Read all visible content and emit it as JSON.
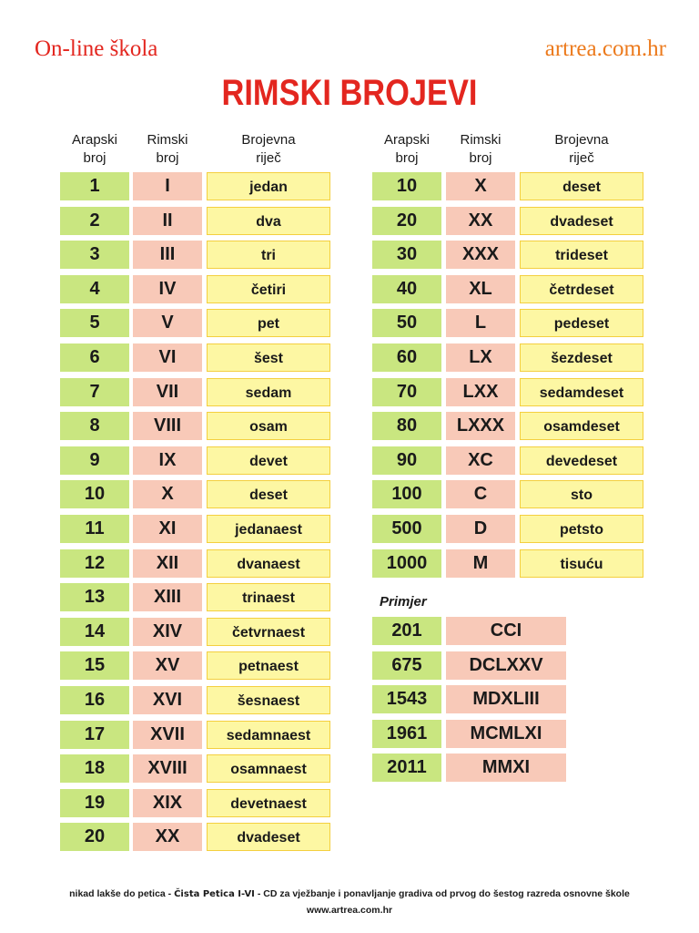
{
  "header": {
    "brand_left": "On-line škola",
    "brand_right": "artrea.com.hr",
    "title": "RIMSKI BROJEVI"
  },
  "columns": {
    "arabic": "Arapski broj",
    "roman": "Rimski broj",
    "word": "Brojevna riječ"
  },
  "left_table": [
    {
      "arabic": "1",
      "roman": "I",
      "word": "jedan"
    },
    {
      "arabic": "2",
      "roman": "II",
      "word": "dva"
    },
    {
      "arabic": "3",
      "roman": "III",
      "word": "tri"
    },
    {
      "arabic": "4",
      "roman": "IV",
      "word": "četiri"
    },
    {
      "arabic": "5",
      "roman": "V",
      "word": "pet"
    },
    {
      "arabic": "6",
      "roman": "VI",
      "word": "šest"
    },
    {
      "arabic": "7",
      "roman": "VII",
      "word": "sedam"
    },
    {
      "arabic": "8",
      "roman": "VIII",
      "word": "osam"
    },
    {
      "arabic": "9",
      "roman": "IX",
      "word": "devet"
    },
    {
      "arabic": "10",
      "roman": "X",
      "word": "deset"
    },
    {
      "arabic": "11",
      "roman": "XI",
      "word": "jedanaest"
    },
    {
      "arabic": "12",
      "roman": "XII",
      "word": "dvanaest"
    },
    {
      "arabic": "13",
      "roman": "XIII",
      "word": "trinaest"
    },
    {
      "arabic": "14",
      "roman": "XIV",
      "word": "četvrnaest"
    },
    {
      "arabic": "15",
      "roman": "XV",
      "word": "petnaest"
    },
    {
      "arabic": "16",
      "roman": "XVI",
      "word": "šesnaest"
    },
    {
      "arabic": "17",
      "roman": "XVII",
      "word": "sedamnaest"
    },
    {
      "arabic": "18",
      "roman": "XVIII",
      "word": "osamnaest"
    },
    {
      "arabic": "19",
      "roman": "XIX",
      "word": "devetnaest"
    },
    {
      "arabic": "20",
      "roman": "XX",
      "word": "dvadeset"
    }
  ],
  "right_table": [
    {
      "arabic": "10",
      "roman": "X",
      "word": "deset"
    },
    {
      "arabic": "20",
      "roman": "XX",
      "word": "dvadeset"
    },
    {
      "arabic": "30",
      "roman": "XXX",
      "word": "trideset"
    },
    {
      "arabic": "40",
      "roman": "XL",
      "word": "četrdeset"
    },
    {
      "arabic": "50",
      "roman": "L",
      "word": "pedeset"
    },
    {
      "arabic": "60",
      "roman": "LX",
      "word": "šezdeset"
    },
    {
      "arabic": "70",
      "roman": "LXX",
      "word": "sedamdeset"
    },
    {
      "arabic": "80",
      "roman": "LXXX",
      "word": "osamdeset"
    },
    {
      "arabic": "90",
      "roman": "XC",
      "word": "devedeset"
    },
    {
      "arabic": "100",
      "roman": "C",
      "word": "sto"
    },
    {
      "arabic": "500",
      "roman": "D",
      "word": "petsto"
    },
    {
      "arabic": "1000",
      "roman": "M",
      "word": "tisuću"
    }
  ],
  "examples": {
    "label": "Primjer",
    "items": [
      {
        "arabic": "201",
        "roman": "CCI"
      },
      {
        "arabic": "675",
        "roman": "DCLXXV"
      },
      {
        "arabic": "1543",
        "roman": "MDXLIII"
      },
      {
        "arabic": "1961",
        "roman": "MCMLXI"
      },
      {
        "arabic": "2011",
        "roman": "MMXI"
      }
    ]
  },
  "footer": {
    "line1_prefix": "nikad lakše do petica - ",
    "line1_product": "Čista Petica I-VI",
    "line1_suffix": " - CD za vježbanje i ponavljanje gradiva od prvog do šestog razreda osnovne škole",
    "line2": "www.artrea.com.hr"
  }
}
